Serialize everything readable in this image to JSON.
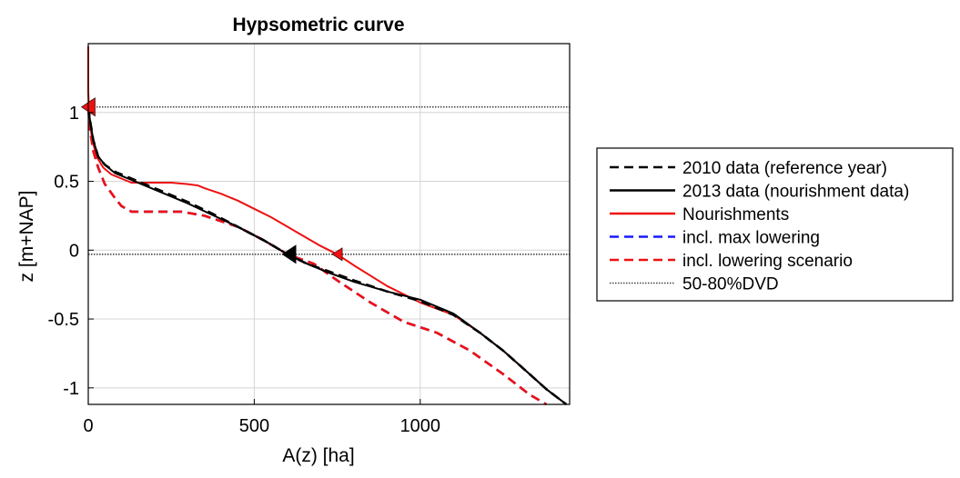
{
  "chart_data": {
    "type": "line",
    "title": "Hypsometric curve",
    "xlabel": "A(z) [ha]",
    "ylabel": "z [m+NAP]",
    "xlim": [
      0,
      1450
    ],
    "ylim": [
      -1.12,
      1.5
    ],
    "xticks": [
      0,
      500,
      1000
    ],
    "xtick_labels": [
      "0",
      "500",
      "1000"
    ],
    "yticks": [
      -1,
      -0.5,
      0,
      0.5,
      1
    ],
    "ytick_labels": [
      "-1",
      "-0.5",
      "0",
      "0.5",
      "1"
    ],
    "grid": true,
    "legend_position": "outside-right",
    "series": [
      {
        "name": "2010 data (reference year)",
        "color": "#000000",
        "style": "dashed",
        "x": [
          0,
          5,
          15,
          30,
          50,
          80,
          120,
          170,
          230,
          300,
          370,
          450,
          530,
          600,
          660,
          720,
          800,
          900,
          1000,
          1100,
          1180,
          1250,
          1320,
          1380,
          1440
        ],
        "y": [
          1.04,
          0.95,
          0.8,
          0.68,
          0.62,
          0.57,
          0.53,
          0.48,
          0.42,
          0.35,
          0.27,
          0.17,
          0.07,
          -0.03,
          -0.1,
          -0.15,
          -0.22,
          -0.3,
          -0.37,
          -0.47,
          -0.6,
          -0.73,
          -0.88,
          -1.01,
          -1.12
        ]
      },
      {
        "name": "2013 data (nourishment data)",
        "color": "#000000",
        "style": "solid",
        "x": [
          0,
          5,
          15,
          30,
          50,
          80,
          120,
          170,
          230,
          300,
          370,
          450,
          530,
          600,
          660,
          720,
          800,
          900,
          1000,
          1100,
          1180,
          1250,
          1320,
          1380,
          1440
        ],
        "y": [
          1.04,
          0.95,
          0.8,
          0.68,
          0.62,
          0.56,
          0.52,
          0.47,
          0.41,
          0.34,
          0.26,
          0.17,
          0.07,
          -0.03,
          -0.1,
          -0.16,
          -0.23,
          -0.3,
          -0.36,
          -0.46,
          -0.6,
          -0.73,
          -0.88,
          -1.01,
          -1.12
        ]
      },
      {
        "name": "Nourishments",
        "color": "#ee1111",
        "style": "solid",
        "x": [
          0,
          0,
          2,
          5,
          12,
          25,
          45,
          70,
          100,
          130,
          150,
          200,
          250,
          300,
          330,
          350,
          400,
          450,
          500,
          550,
          600,
          650,
          700,
          750,
          800,
          900,
          1000,
          1100,
          1180,
          1250,
          1320,
          1380,
          1440
        ],
        "y": [
          1.48,
          1.15,
          1.04,
          0.92,
          0.8,
          0.68,
          0.6,
          0.55,
          0.52,
          0.49,
          0.49,
          0.49,
          0.49,
          0.48,
          0.47,
          0.45,
          0.41,
          0.36,
          0.3,
          0.24,
          0.17,
          0.1,
          0.03,
          -0.03,
          -0.11,
          -0.26,
          -0.38,
          -0.47,
          -0.6,
          -0.73,
          -0.88,
          -1.01,
          -1.12
        ]
      },
      {
        "name": "incl. max lowering",
        "color": "#1a1aff",
        "style": "dashed",
        "x": [
          0,
          5,
          15,
          30,
          50,
          80,
          100,
          130,
          200,
          280,
          350,
          450,
          530,
          600,
          680,
          750,
          850,
          950,
          1050,
          1150,
          1250,
          1330,
          1380
        ],
        "y": [
          1.04,
          0.88,
          0.72,
          0.6,
          0.48,
          0.38,
          0.32,
          0.28,
          0.28,
          0.28,
          0.25,
          0.17,
          0.07,
          -0.03,
          -0.1,
          -0.22,
          -0.38,
          -0.52,
          -0.6,
          -0.73,
          -0.9,
          -1.05,
          -1.12
        ]
      },
      {
        "name": "incl. lowering scenario",
        "color": "#ee1111",
        "style": "dashed",
        "x": [
          0,
          5,
          15,
          30,
          50,
          80,
          100,
          130,
          200,
          280,
          350,
          450,
          530,
          600,
          680,
          750,
          850,
          950,
          1050,
          1150,
          1250,
          1330,
          1380
        ],
        "y": [
          1.04,
          0.88,
          0.72,
          0.6,
          0.48,
          0.38,
          0.32,
          0.28,
          0.28,
          0.28,
          0.25,
          0.17,
          0.07,
          -0.03,
          -0.1,
          -0.22,
          -0.38,
          -0.52,
          -0.6,
          -0.73,
          -0.9,
          -1.05,
          -1.12
        ]
      },
      {
        "name": "50-80%DVD",
        "color": "#444444",
        "style": "dotted",
        "hlines": [
          1.04,
          -0.03
        ]
      }
    ],
    "markers": [
      {
        "x": 0,
        "y": 1.04,
        "color": "#ee1111",
        "size": "large"
      },
      {
        "x": 605,
        "y": -0.03,
        "color": "#000000",
        "size": "large"
      },
      {
        "x": 750,
        "y": -0.03,
        "color": "#ee1111",
        "size": "small"
      }
    ]
  }
}
